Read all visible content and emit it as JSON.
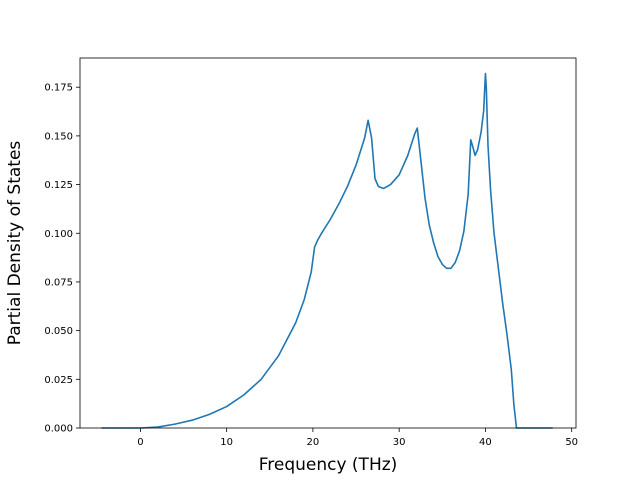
{
  "chart_data": {
    "type": "line",
    "title": "",
    "xlabel": "Frequency (THz)",
    "ylabel": "Partial Density of States",
    "xlim": [
      -7.0,
      50.5
    ],
    "ylim": [
      0.0,
      0.19
    ],
    "xticks": [
      0,
      10,
      20,
      30,
      40,
      50
    ],
    "xtick_labels": [
      "0",
      "10",
      "20",
      "30",
      "40",
      "50"
    ],
    "yticks": [
      0.0,
      0.025,
      0.05,
      0.075,
      0.1,
      0.125,
      0.15,
      0.175
    ],
    "ytick_labels": [
      "0.000",
      "0.025",
      "0.050",
      "0.075",
      "0.100",
      "0.125",
      "0.150",
      "0.175"
    ],
    "grid": false,
    "legend": "none",
    "line_color": "#1f77b4",
    "series": [
      {
        "x": [
          -4.5,
          -2,
          0,
          2,
          4,
          6,
          8,
          10,
          12,
          14,
          16,
          18,
          19,
          19.8,
          20.2,
          20.5,
          21,
          22,
          23,
          24,
          25,
          26,
          26.4,
          26.8,
          27.2,
          27.6,
          28.2,
          29,
          30,
          31,
          31.8,
          32.1,
          32.5,
          33,
          33.5,
          34,
          34.5,
          35,
          35.5,
          36,
          36.5,
          37,
          37.5,
          38,
          38.3,
          38.5,
          38.8,
          39.1,
          39.5,
          39.8,
          40.0,
          40.1,
          40.3,
          40.6,
          41,
          41.5,
          42,
          42.5,
          43,
          43.3,
          43.6,
          44,
          46,
          47.8
        ],
        "y": [
          0.0,
          0.0,
          0.0,
          0.0005,
          0.002,
          0.004,
          0.007,
          0.011,
          0.017,
          0.025,
          0.037,
          0.054,
          0.066,
          0.08,
          0.093,
          0.096,
          0.1,
          0.107,
          0.115,
          0.124,
          0.135,
          0.149,
          0.158,
          0.149,
          0.128,
          0.124,
          0.123,
          0.125,
          0.13,
          0.14,
          0.151,
          0.154,
          0.138,
          0.118,
          0.104,
          0.095,
          0.088,
          0.084,
          0.082,
          0.082,
          0.085,
          0.091,
          0.101,
          0.12,
          0.148,
          0.145,
          0.14,
          0.143,
          0.152,
          0.163,
          0.182,
          0.175,
          0.145,
          0.122,
          0.1,
          0.082,
          0.064,
          0.048,
          0.03,
          0.012,
          0.0,
          0.0,
          0.0,
          0.0
        ]
      }
    ]
  }
}
